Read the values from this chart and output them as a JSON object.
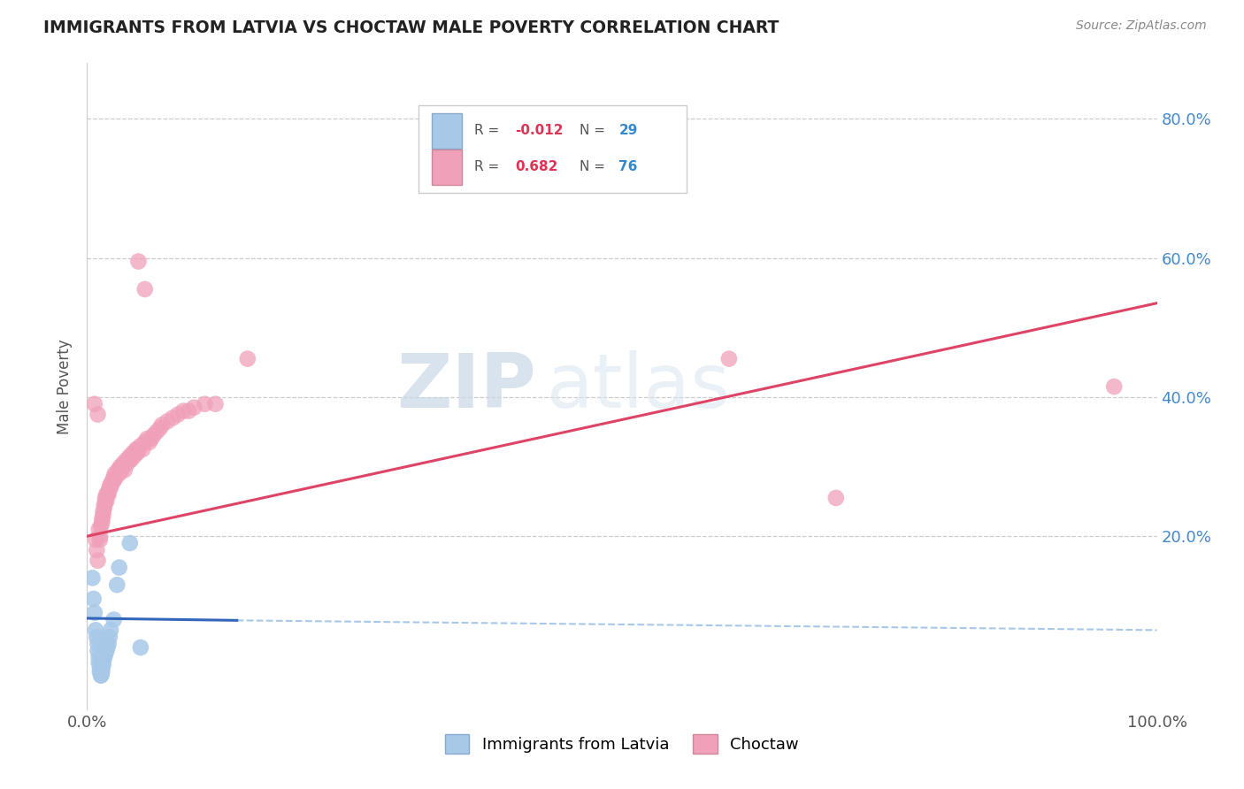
{
  "title": "IMMIGRANTS FROM LATVIA VS CHOCTAW MALE POVERTY CORRELATION CHART",
  "source": "Source: ZipAtlas.com",
  "ylabel": "Male Poverty",
  "ytick_values": [
    0.2,
    0.4,
    0.6,
    0.8
  ],
  "ytick_labels": [
    "20.0%",
    "40.0%",
    "60.0%",
    "80.0%"
  ],
  "legend_label_blue": "Immigrants from Latvia",
  "legend_label_pink": "Choctaw",
  "watermark_zip": "ZIP",
  "watermark_atlas": "atlas",
  "blue_color": "#a8c8e8",
  "pink_color": "#f0a0b8",
  "blue_line_color": "#3366bb",
  "pink_line_color": "#dd4466",
  "blue_dash_color": "#a8c8e8",
  "blue_scatter": [
    [
      0.005,
      0.14
    ],
    [
      0.006,
      0.11
    ],
    [
      0.007,
      0.09
    ],
    [
      0.008,
      0.065
    ],
    [
      0.009,
      0.055
    ],
    [
      0.01,
      0.045
    ],
    [
      0.01,
      0.035
    ],
    [
      0.011,
      0.025
    ],
    [
      0.011,
      0.018
    ],
    [
      0.012,
      0.01
    ],
    [
      0.012,
      0.005
    ],
    [
      0.013,
      0.0
    ],
    [
      0.013,
      0.0
    ],
    [
      0.014,
      0.005
    ],
    [
      0.014,
      0.01
    ],
    [
      0.015,
      0.015
    ],
    [
      0.015,
      0.02
    ],
    [
      0.016,
      0.025
    ],
    [
      0.017,
      0.03
    ],
    [
      0.018,
      0.035
    ],
    [
      0.019,
      0.04
    ],
    [
      0.02,
      0.045
    ],
    [
      0.021,
      0.055
    ],
    [
      0.022,
      0.065
    ],
    [
      0.025,
      0.08
    ],
    [
      0.028,
      0.13
    ],
    [
      0.03,
      0.155
    ],
    [
      0.04,
      0.19
    ],
    [
      0.05,
      0.04
    ]
  ],
  "pink_scatter": [
    [
      0.008,
      0.195
    ],
    [
      0.009,
      0.18
    ],
    [
      0.01,
      0.165
    ],
    [
      0.011,
      0.21
    ],
    [
      0.012,
      0.2
    ],
    [
      0.012,
      0.195
    ],
    [
      0.013,
      0.215
    ],
    [
      0.014,
      0.225
    ],
    [
      0.014,
      0.22
    ],
    [
      0.015,
      0.235
    ],
    [
      0.015,
      0.23
    ],
    [
      0.016,
      0.24
    ],
    [
      0.016,
      0.245
    ],
    [
      0.017,
      0.25
    ],
    [
      0.017,
      0.255
    ],
    [
      0.018,
      0.25
    ],
    [
      0.018,
      0.26
    ],
    [
      0.019,
      0.26
    ],
    [
      0.02,
      0.265
    ],
    [
      0.02,
      0.26
    ],
    [
      0.021,
      0.27
    ],
    [
      0.022,
      0.275
    ],
    [
      0.022,
      0.27
    ],
    [
      0.023,
      0.275
    ],
    [
      0.024,
      0.28
    ],
    [
      0.025,
      0.285
    ],
    [
      0.025,
      0.28
    ],
    [
      0.026,
      0.29
    ],
    [
      0.027,
      0.285
    ],
    [
      0.028,
      0.29
    ],
    [
      0.029,
      0.295
    ],
    [
      0.03,
      0.295
    ],
    [
      0.03,
      0.29
    ],
    [
      0.031,
      0.3
    ],
    [
      0.032,
      0.295
    ],
    [
      0.033,
      0.3
    ],
    [
      0.034,
      0.305
    ],
    [
      0.035,
      0.295
    ],
    [
      0.036,
      0.305
    ],
    [
      0.037,
      0.31
    ],
    [
      0.038,
      0.305
    ],
    [
      0.039,
      0.31
    ],
    [
      0.04,
      0.315
    ],
    [
      0.041,
      0.31
    ],
    [
      0.042,
      0.315
    ],
    [
      0.043,
      0.32
    ],
    [
      0.044,
      0.315
    ],
    [
      0.045,
      0.32
    ],
    [
      0.046,
      0.325
    ],
    [
      0.047,
      0.32
    ],
    [
      0.048,
      0.325
    ],
    [
      0.05,
      0.33
    ],
    [
      0.052,
      0.325
    ],
    [
      0.054,
      0.335
    ],
    [
      0.056,
      0.34
    ],
    [
      0.058,
      0.335
    ],
    [
      0.06,
      0.34
    ],
    [
      0.062,
      0.345
    ],
    [
      0.065,
      0.35
    ],
    [
      0.068,
      0.355
    ],
    [
      0.07,
      0.36
    ],
    [
      0.075,
      0.365
    ],
    [
      0.08,
      0.37
    ],
    [
      0.085,
      0.375
    ],
    [
      0.09,
      0.38
    ],
    [
      0.095,
      0.38
    ],
    [
      0.1,
      0.385
    ],
    [
      0.11,
      0.39
    ],
    [
      0.12,
      0.39
    ],
    [
      0.048,
      0.595
    ],
    [
      0.054,
      0.555
    ],
    [
      0.15,
      0.455
    ],
    [
      0.6,
      0.455
    ],
    [
      0.7,
      0.255
    ],
    [
      0.96,
      0.415
    ],
    [
      0.007,
      0.39
    ],
    [
      0.01,
      0.375
    ]
  ],
  "xlim": [
    0.0,
    1.0
  ],
  "ylim": [
    -0.05,
    0.88
  ],
  "pink_line": [
    [
      0.0,
      0.2
    ],
    [
      1.0,
      0.535
    ]
  ],
  "blue_line_solid": [
    [
      0.0,
      0.082
    ],
    [
      0.14,
      0.079
    ]
  ],
  "blue_line_dash": [
    [
      0.14,
      0.079
    ],
    [
      1.0,
      0.065
    ]
  ]
}
